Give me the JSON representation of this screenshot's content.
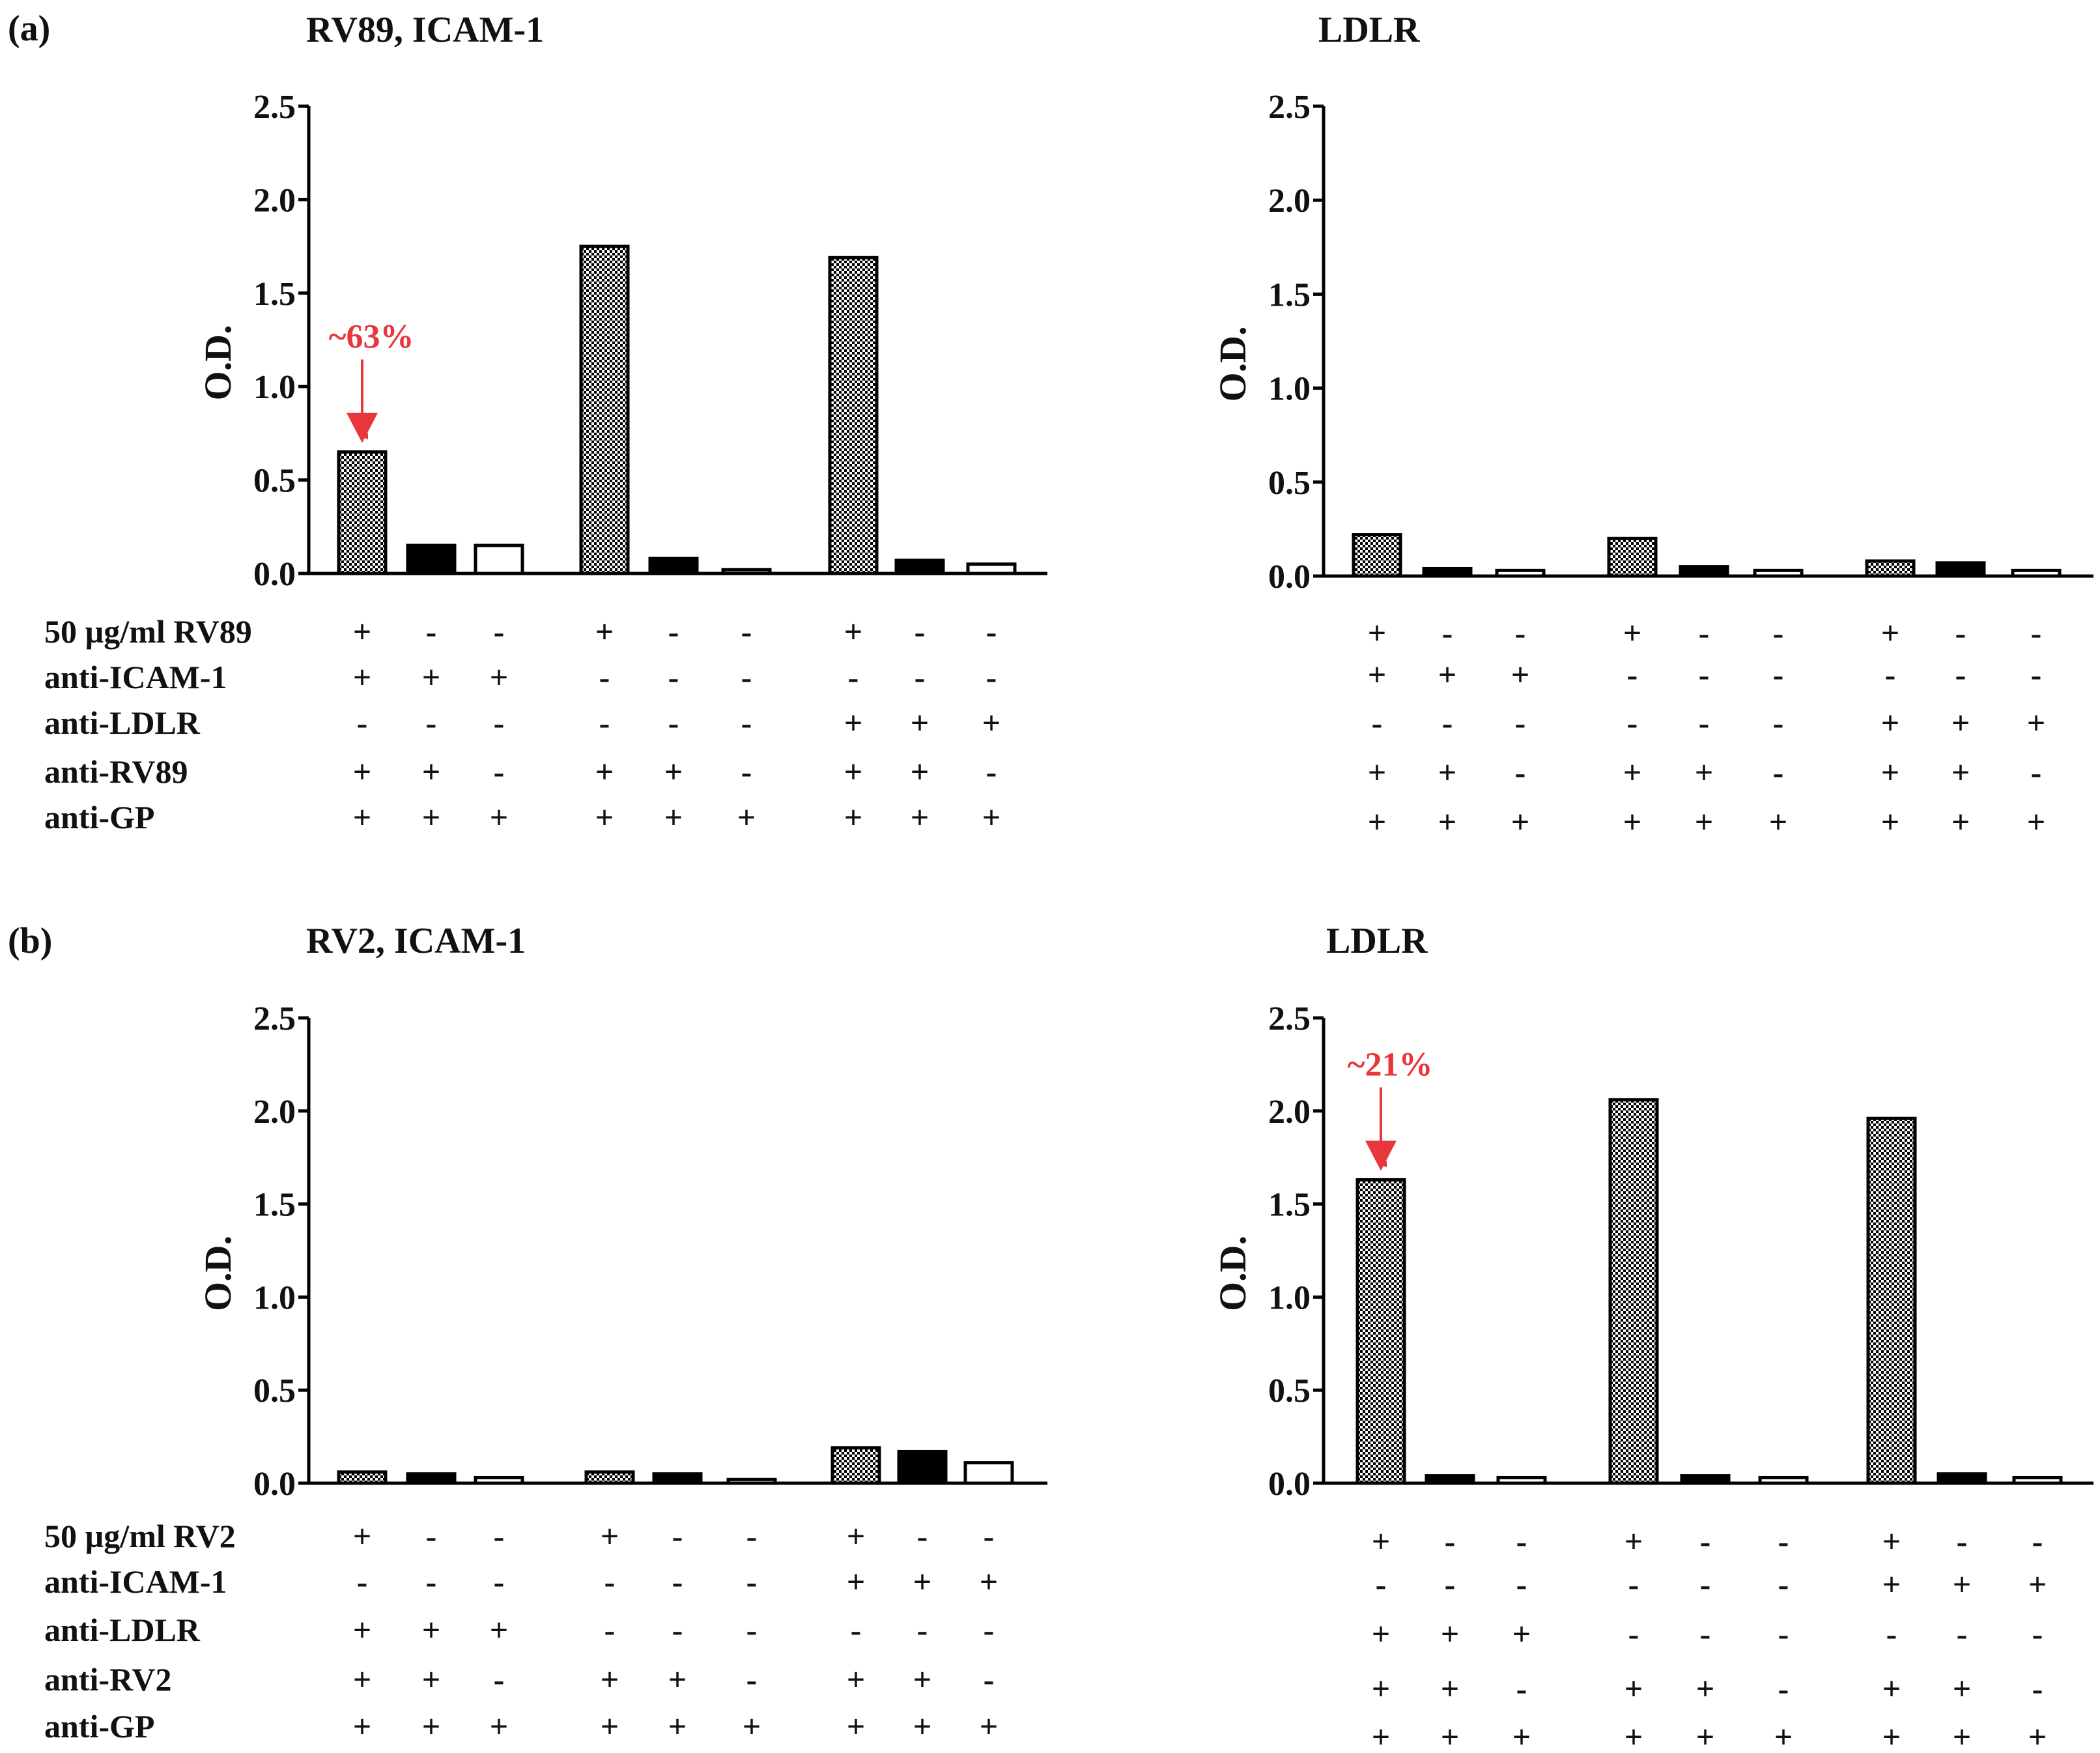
{
  "panels": [
    {
      "label": "(a)"
    },
    {
      "label": "(b)"
    }
  ],
  "chart_data": [
    {
      "type": "bar",
      "panel": "(a)",
      "title": "RV89, ICAM-1",
      "ylabel": "O.D.",
      "ylim": [
        0,
        2.5
      ],
      "yticks": [
        "0.0",
        "0.5",
        "1.0",
        "1.5",
        "2.0",
        "2.5"
      ],
      "values": [
        0.65,
        0.15,
        0.15,
        1.75,
        0.08,
        0.02,
        1.69,
        0.07,
        0.05
      ],
      "fills": [
        "pattern",
        "black",
        "white",
        "pattern",
        "black",
        "white",
        "pattern",
        "black",
        "white"
      ],
      "show_row_labels": true,
      "rows": [
        {
          "label": "50 µg/ml RV89",
          "symbols": [
            "+",
            "-",
            "-",
            "+",
            "-",
            "-",
            "+",
            "-",
            "-"
          ]
        },
        {
          "label": "anti-ICAM-1",
          "symbols": [
            "+",
            "+",
            "+",
            "-",
            "-",
            "-",
            "-",
            "-",
            "-"
          ]
        },
        {
          "label": "anti-LDLR",
          "symbols": [
            "-",
            "-",
            "-",
            "-",
            "-",
            "-",
            "+",
            "+",
            "+"
          ]
        },
        {
          "label": "anti-RV89",
          "symbols": [
            "+",
            "+",
            "-",
            "+",
            "+",
            "-",
            "+",
            "+",
            "-"
          ]
        },
        {
          "label": "anti-GP",
          "symbols": [
            "+",
            "+",
            "+",
            "+",
            "+",
            "+",
            "+",
            "+",
            "+"
          ]
        }
      ],
      "annotation": {
        "text": "~63%",
        "bar_index": 0
      }
    },
    {
      "type": "bar",
      "panel": "(a)",
      "title": "LDLR",
      "ylabel": "O.D.",
      "ylim": [
        0,
        2.5
      ],
      "yticks": [
        "0.0",
        "0.5",
        "1.0",
        "1.5",
        "2.0",
        "2.5"
      ],
      "values": [
        0.22,
        0.04,
        0.03,
        0.2,
        0.05,
        0.03,
        0.08,
        0.07,
        0.03
      ],
      "fills": [
        "pattern",
        "black",
        "white",
        "pattern",
        "black",
        "white",
        "pattern",
        "black",
        "white"
      ],
      "show_row_labels": false,
      "rows": [
        {
          "label": "50 µg/ml RV89",
          "symbols": [
            "+",
            "-",
            "-",
            "+",
            "-",
            "-",
            "+",
            "-",
            "-"
          ]
        },
        {
          "label": "anti-ICAM-1",
          "symbols": [
            "+",
            "+",
            "+",
            "-",
            "-",
            "-",
            "-",
            "-",
            "-"
          ]
        },
        {
          "label": "anti-LDLR",
          "symbols": [
            "-",
            "-",
            "-",
            "-",
            "-",
            "-",
            "+",
            "+",
            "+"
          ]
        },
        {
          "label": "anti-RV89",
          "symbols": [
            "+",
            "+",
            "-",
            "+",
            "+",
            "-",
            "+",
            "+",
            "-"
          ]
        },
        {
          "label": "anti-GP",
          "symbols": [
            "+",
            "+",
            "+",
            "+",
            "+",
            "+",
            "+",
            "+",
            "+"
          ]
        }
      ],
      "annotation": null
    },
    {
      "type": "bar",
      "panel": "(b)",
      "title": "RV2, ICAM-1",
      "ylabel": "O.D.",
      "ylim": [
        0,
        2.5
      ],
      "yticks": [
        "0.0",
        "0.5",
        "1.0",
        "1.5",
        "2.0",
        "2.5"
      ],
      "values": [
        0.06,
        0.05,
        0.03,
        0.06,
        0.05,
        0.02,
        0.19,
        0.17,
        0.11
      ],
      "fills": [
        "pattern",
        "black",
        "white",
        "pattern",
        "black",
        "white",
        "pattern",
        "black",
        "white"
      ],
      "show_row_labels": true,
      "rows": [
        {
          "label": "50 µg/ml RV2",
          "symbols": [
            "+",
            "-",
            "-",
            "+",
            "-",
            "-",
            "+",
            "-",
            "-"
          ]
        },
        {
          "label": "anti-ICAM-1",
          "symbols": [
            "-",
            "-",
            "-",
            "-",
            "-",
            "-",
            "+",
            "+",
            "+"
          ]
        },
        {
          "label": "anti-LDLR",
          "symbols": [
            "+",
            "+",
            "+",
            "-",
            "-",
            "-",
            "-",
            "-",
            "-"
          ]
        },
        {
          "label": "anti-RV2",
          "symbols": [
            "+",
            "+",
            "-",
            "+",
            "+",
            "-",
            "+",
            "+",
            "-"
          ]
        },
        {
          "label": "anti-GP",
          "symbols": [
            "+",
            "+",
            "+",
            "+",
            "+",
            "+",
            "+",
            "+",
            "+"
          ]
        }
      ],
      "annotation": null
    },
    {
      "type": "bar",
      "panel": "(b)",
      "title": "LDLR",
      "ylabel": "O.D.",
      "ylim": [
        0,
        2.5
      ],
      "yticks": [
        "0.0",
        "0.5",
        "1.0",
        "1.5",
        "2.0",
        "2.5"
      ],
      "values": [
        1.63,
        0.04,
        0.03,
        2.06,
        0.04,
        0.03,
        1.96,
        0.05,
        0.03
      ],
      "fills": [
        "pattern",
        "black",
        "white",
        "pattern",
        "black",
        "white",
        "pattern",
        "black",
        "white"
      ],
      "show_row_labels": false,
      "rows": [
        {
          "label": "50 µg/ml RV2",
          "symbols": [
            "+",
            "-",
            "-",
            "+",
            "-",
            "-",
            "+",
            "-",
            "-"
          ]
        },
        {
          "label": "anti-ICAM-1",
          "symbols": [
            "-",
            "-",
            "-",
            "-",
            "-",
            "-",
            "+",
            "+",
            "+"
          ]
        },
        {
          "label": "anti-LDLR",
          "symbols": [
            "+",
            "+",
            "+",
            "-",
            "-",
            "-",
            "-",
            "-",
            "-"
          ]
        },
        {
          "label": "anti-RV2",
          "symbols": [
            "+",
            "+",
            "-",
            "+",
            "+",
            "-",
            "+",
            "+",
            "-"
          ]
        },
        {
          "label": "anti-GP",
          "symbols": [
            "+",
            "+",
            "+",
            "+",
            "+",
            "+",
            "+",
            "+",
            "+"
          ]
        }
      ],
      "annotation": {
        "text": "~21%",
        "bar_index": 0
      }
    }
  ],
  "colors": {
    "axis": "#000000",
    "annotation": "#e8373c",
    "bar_black": "#000000",
    "bar_white": "#ffffff",
    "pattern_dark": "#000000",
    "pattern_light": "#ffffff"
  }
}
